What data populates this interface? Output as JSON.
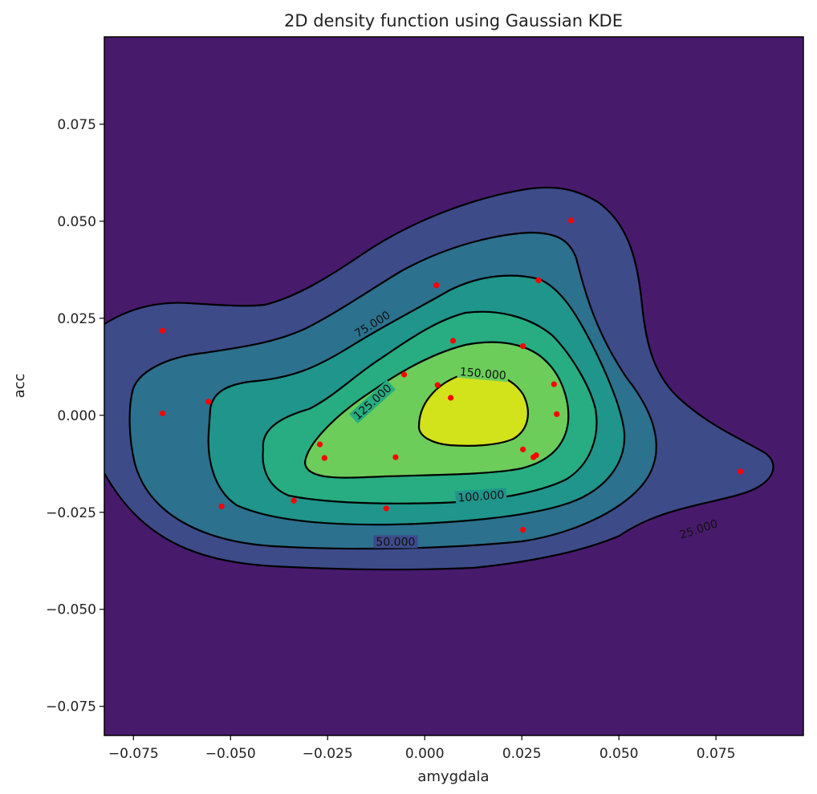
{
  "chart_data": {
    "type": "contour",
    "title": "2D density function using Gaussian KDE",
    "xlabel": "amygdala",
    "ylabel": "acc",
    "xlim": [
      -0.0825,
      0.0975
    ],
    "ylim": [
      -0.0825,
      0.0975
    ],
    "xticks": [
      -0.075,
      -0.05,
      -0.025,
      0.0,
      0.025,
      0.05,
      0.075
    ],
    "xtick_labels": [
      "−0.075",
      "−0.050",
      "−0.025",
      "0.000",
      "0.025",
      "0.050",
      "0.075"
    ],
    "yticks": [
      -0.075,
      -0.05,
      -0.025,
      0.0,
      0.025,
      0.05,
      0.075
    ],
    "ytick_labels": [
      "−0.075",
      "−0.050",
      "−0.025",
      "0.000",
      "0.025",
      "0.050",
      "0.075"
    ],
    "levels": [
      25,
      50,
      75,
      100,
      125,
      150
    ],
    "contour_labels": [
      {
        "text": "25.000",
        "x": 0.0705,
        "y": -0.0293,
        "angle": -18
      },
      {
        "text": "50.000",
        "x": -0.0075,
        "y": -0.0326,
        "angle": 0
      },
      {
        "text": "75.000",
        "x": -0.0135,
        "y": 0.0235,
        "angle": -32
      },
      {
        "text": "100.000",
        "x": 0.0145,
        "y": -0.0208,
        "angle": -4
      },
      {
        "text": "125.000",
        "x": -0.0135,
        "y": 0.0035,
        "angle": -42
      },
      {
        "text": "150.000",
        "x": 0.015,
        "y": 0.0108,
        "angle": 5
      }
    ],
    "fill_colors": [
      "#481a6c",
      "#3d4b89",
      "#2c718e",
      "#1f958b",
      "#27ad81",
      "#6ccd5a",
      "#d2e21b"
    ],
    "line_color": "#000000",
    "scatter_color": "#ff0000",
    "points": [
      {
        "x": -0.0675,
        "y": 0.0218
      },
      {
        "x": -0.0675,
        "y": 0.0005
      },
      {
        "x": -0.0557,
        "y": 0.0035
      },
      {
        "x": -0.0523,
        "y": -0.0235
      },
      {
        "x": -0.0337,
        "y": -0.022
      },
      {
        "x": -0.027,
        "y": -0.0075
      },
      {
        "x": -0.0258,
        "y": -0.011
      },
      {
        "x": -0.0099,
        "y": -0.024
      },
      {
        "x": -0.0075,
        "y": -0.0108
      },
      {
        "x": -0.0053,
        "y": 0.0105
      },
      {
        "x": 0.003,
        "y": 0.0335
      },
      {
        "x": 0.0033,
        "y": 0.0078
      },
      {
        "x": 0.0067,
        "y": 0.0045
      },
      {
        "x": 0.0073,
        "y": 0.0192
      },
      {
        "x": 0.0253,
        "y": 0.0178
      },
      {
        "x": 0.0253,
        "y": -0.0088
      },
      {
        "x": 0.0253,
        "y": -0.0295
      },
      {
        "x": 0.028,
        "y": -0.0108
      },
      {
        "x": 0.0287,
        "y": -0.0103
      },
      {
        "x": 0.0293,
        "y": 0.0348
      },
      {
        "x": 0.0333,
        "y": 0.008
      },
      {
        "x": 0.034,
        "y": 0.0003
      },
      {
        "x": 0.0377,
        "y": 0.0502
      },
      {
        "x": 0.0813,
        "y": -0.0145
      }
    ]
  }
}
